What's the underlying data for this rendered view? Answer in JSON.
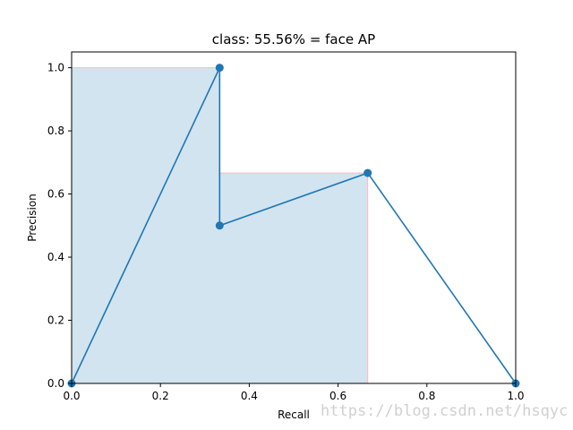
{
  "chart_data": {
    "type": "line",
    "title": "class: 55.56% = face AP",
    "xlabel": "Recall",
    "ylabel": "Precision",
    "xlim": [
      0.0,
      1.0
    ],
    "ylim": [
      0.0,
      1.05
    ],
    "x_ticks": [
      0.0,
      0.2,
      0.4,
      0.6,
      0.8,
      1.0
    ],
    "y_ticks": [
      0.0,
      0.2,
      0.4,
      0.6,
      0.8,
      1.0
    ],
    "x_tick_labels": [
      "0.0",
      "0.2",
      "0.4",
      "0.6",
      "0.8",
      "1.0"
    ],
    "y_tick_labels": [
      "0.0",
      "0.2",
      "0.4",
      "0.6",
      "0.8",
      "1.0"
    ],
    "grid": false,
    "series": [
      {
        "kind": "line-with-markers",
        "color": "#1f77b4",
        "x": [
          0.0,
          0.3333,
          0.3333,
          0.6667,
          1.0
        ],
        "y": [
          0.0,
          1.0,
          0.5,
          0.6667,
          0.0
        ]
      },
      {
        "kind": "area-step",
        "fill_color": "#1f77b4",
        "fill_alpha": 0.2,
        "edge_color": "#ffb6c1",
        "x": [
          0.0,
          0.3333,
          0.6667
        ],
        "y": [
          1.0,
          0.6667,
          0.0
        ]
      }
    ]
  },
  "watermark": "https://blog.csdn.net/hsqyc"
}
